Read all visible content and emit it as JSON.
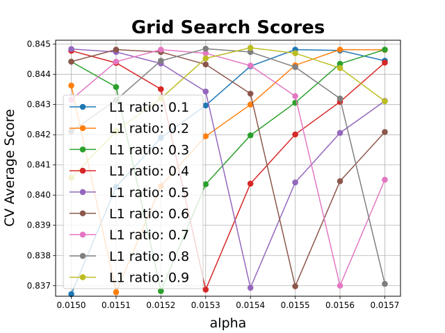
{
  "chart_data": {
    "type": "line",
    "title": "Grid Search Scores",
    "xlabel": "alpha",
    "ylabel": "CV Average Score",
    "x": [
      0.015,
      0.0151,
      0.0152,
      0.0153,
      0.0154,
      0.0155,
      0.0156,
      0.0157
    ],
    "x_ticks": [
      "0.0150",
      "0.0151",
      "0.0152",
      "0.0153",
      "0.0154",
      "0.0155",
      "0.0156",
      "0.0157"
    ],
    "ylim": [
      0.83665,
      0.84513
    ],
    "y_ticks": [
      "0.837",
      "0.838",
      "0.839",
      "0.840",
      "0.841",
      "0.842",
      "0.843",
      "0.844",
      "0.845"
    ],
    "grid": true,
    "legend_position": "left",
    "series": [
      {
        "name": "L1 ratio: 0.1",
        "color": "#1f77b4",
        "values": [
          0.83672,
          0.84027,
          0.8419,
          0.84297,
          0.84427,
          0.84482,
          0.84479,
          0.84445
        ]
      },
      {
        "name": "L1 ratio: 0.2",
        "color": "#ff7f0e",
        "values": [
          0.84363,
          0.83678,
          0.8403,
          0.84195,
          0.843,
          0.8443,
          0.84482,
          0.84481
        ]
      },
      {
        "name": "L1 ratio: 0.3",
        "color": "#2ca02c",
        "values": [
          0.84442,
          0.84358,
          0.83682,
          0.84036,
          0.84198,
          0.84306,
          0.84435,
          0.84482
        ]
      },
      {
        "name": "L1 ratio: 0.4",
        "color": "#d62728",
        "values": [
          0.84478,
          0.84438,
          0.84351,
          0.83687,
          0.84038,
          0.84201,
          0.84309,
          0.84439
        ]
      },
      {
        "name": "L1 ratio: 0.5",
        "color": "#9467bd",
        "values": [
          0.84484,
          0.84474,
          0.84436,
          0.84343,
          0.83693,
          0.84042,
          0.84206,
          0.84312
        ]
      },
      {
        "name": "L1 ratio: 0.6",
        "color": "#8c564b",
        "values": [
          0.84442,
          0.84482,
          0.84474,
          0.84433,
          0.84336,
          0.83698,
          0.84046,
          0.84209
        ]
      },
      {
        "name": "L1 ratio: 0.7",
        "color": "#e377c2",
        "values": [
          0.84316,
          0.84442,
          0.84482,
          0.8447,
          0.84429,
          0.84328,
          0.837,
          0.84051
        ]
      },
      {
        "name": "L1 ratio: 0.8",
        "color": "#7f7f7f",
        "values": [
          0.84211,
          0.84315,
          0.84445,
          0.84485,
          0.84474,
          0.84424,
          0.8432,
          0.83706
        ]
      },
      {
        "name": "L1 ratio: 0.9",
        "color": "#bcbd22",
        "values": [
          0.84057,
          0.84212,
          0.8432,
          0.84453,
          0.84488,
          0.8447,
          0.84421,
          0.84311
        ]
      }
    ]
  }
}
